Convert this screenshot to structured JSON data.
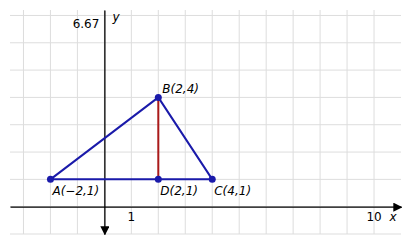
{
  "chart_data": {
    "type": "line",
    "xlabel": "x",
    "ylabel": "y",
    "xlim": [
      -3.5,
      11
    ],
    "ylim": [
      -1.0,
      7.2
    ],
    "xticks": [
      -3,
      -2,
      -1,
      0,
      1,
      2,
      3,
      4,
      5,
      6,
      7,
      8,
      9,
      10
    ],
    "yticks": [
      -1,
      0,
      1,
      2,
      3,
      4,
      5,
      6,
      7
    ],
    "grid": true,
    "tick_labels": false,
    "series": [
      {
        "type": "line",
        "x": [
          -2,
          2,
          4,
          -2
        ],
        "values": [
          1,
          4,
          1,
          1
        ],
        "color": "#1a1aaa"
      },
      {
        "type": "line",
        "x": [
          2,
          2
        ],
        "values": [
          4,
          1
        ],
        "color": "#aa1a1a"
      },
      {
        "type": "scatter",
        "x": [
          -2,
          2,
          4,
          2
        ],
        "values": [
          1,
          4,
          1,
          1
        ],
        "color": "#1a1aaa",
        "marker": "circle"
      }
    ],
    "annotations": [
      {
        "text": "1",
        "x": 1,
        "y": 0
      },
      {
        "text": "10",
        "x": 10,
        "y": 0
      },
      {
        "text": "6.67",
        "x": 0,
        "y": 6.67
      },
      {
        "text": "A(−2,1)",
        "x": -2,
        "y": 1
      },
      {
        "text": "B(2,4)",
        "x": 2,
        "y": 4
      },
      {
        "text": "C(4,1)",
        "x": 4,
        "y": 1
      },
      {
        "text": "D(2,1)",
        "x": 2,
        "y": 1
      }
    ]
  }
}
